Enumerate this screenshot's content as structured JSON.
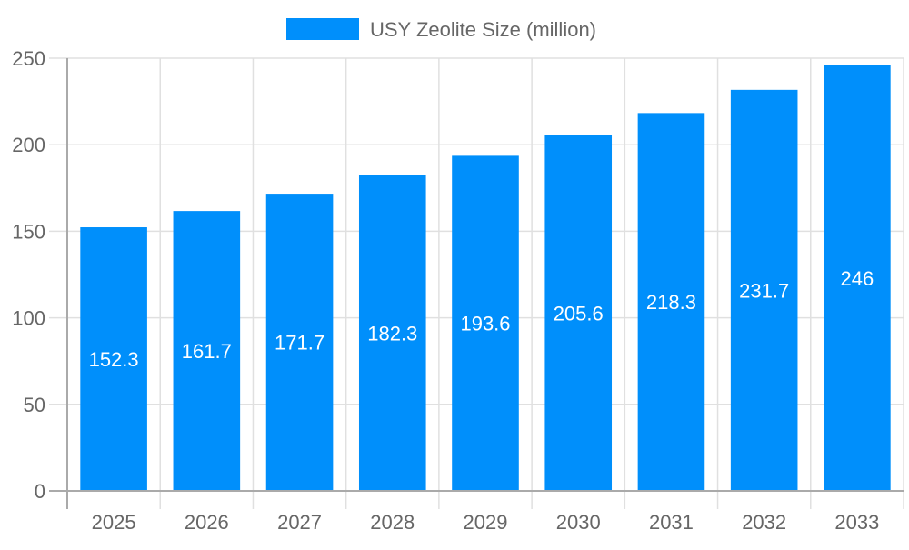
{
  "chart_data": {
    "type": "bar",
    "title": "",
    "xlabel": "",
    "ylabel": "",
    "categories": [
      "2025",
      "2026",
      "2027",
      "2028",
      "2029",
      "2030",
      "2031",
      "2032",
      "2033"
    ],
    "series": [
      {
        "name": "USY Zeolite Size (million)",
        "values": [
          152.3,
          161.7,
          171.7,
          182.3,
          193.6,
          205.6,
          218.3,
          231.7,
          246
        ],
        "color": "#008ffb"
      }
    ],
    "data_labels": [
      "152.3",
      "161.7",
      "171.7",
      "182.3",
      "193.6",
      "205.6",
      "218.3",
      "231.7",
      "246"
    ],
    "ylim": [
      0,
      250
    ],
    "yticks": [
      "0",
      "50",
      "100",
      "150",
      "200",
      "250"
    ],
    "grid": true,
    "legend_position": "top"
  }
}
